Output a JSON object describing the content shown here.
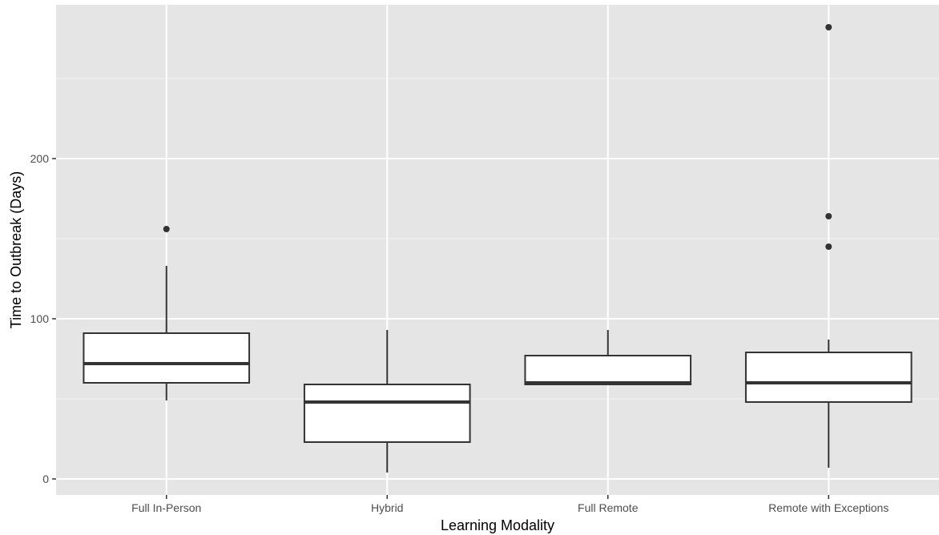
{
  "chart_data": {
    "type": "box",
    "title": "",
    "xlabel": "Learning Modality",
    "ylabel": "Time to Outbreak (Days)",
    "ylim": [
      -10,
      296
    ],
    "yticks": [
      0,
      100,
      200
    ],
    "ytick_labels": [
      "0",
      "100",
      "200"
    ],
    "grid": true,
    "legend": "none",
    "categories": [
      "Full In-Person",
      "Hybrid",
      "Full Remote",
      "Remote with Exceptions"
    ],
    "boxes": [
      {
        "whisker_low": 49,
        "q1": 60,
        "median": 72,
        "q3": 91,
        "whisker_high": 133,
        "outliers": [
          156
        ]
      },
      {
        "whisker_low": 4,
        "q1": 23,
        "median": 48,
        "q3": 59,
        "whisker_high": 93,
        "outliers": []
      },
      {
        "whisker_low": 59,
        "q1": 59,
        "median": 60,
        "q3": 77,
        "whisker_high": 93,
        "outliers": []
      },
      {
        "whisker_low": 7,
        "q1": 48,
        "median": 60,
        "q3": 79,
        "whisker_high": 87,
        "outliers": [
          145,
          164,
          282
        ]
      }
    ]
  },
  "colors": {
    "panel_bg": "#e5e5e5",
    "grid_major": "#ffffff",
    "grid_minor": "#f2f2f2",
    "box_fill": "#ffffff",
    "box_stroke": "#333333",
    "tick_text": "#4d4d4d",
    "title_text": "#000000"
  }
}
